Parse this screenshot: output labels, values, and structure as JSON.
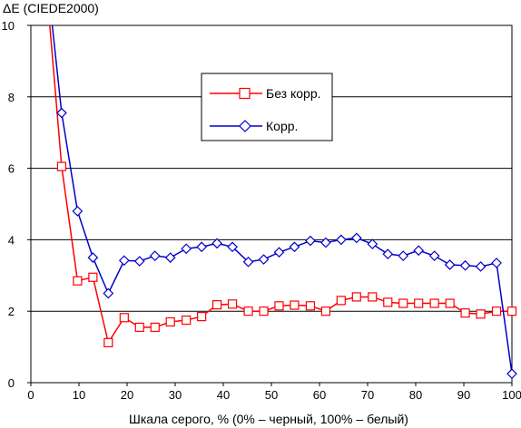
{
  "chart_data": {
    "type": "line",
    "ylabel": "ΔE (CIEDE2000)",
    "xlabel": "Шкала серого, % (0% – черный, 100% – белый)",
    "xlim": [
      0,
      100
    ],
    "ylim": [
      0,
      10
    ],
    "xticks": [
      0,
      10,
      20,
      30,
      40,
      50,
      60,
      70,
      80,
      90,
      100
    ],
    "yticks": [
      0,
      2,
      4,
      6,
      8,
      10
    ],
    "grid": "horizontal",
    "legend_position": "upper-center",
    "series": [
      {
        "name": "Без корр.",
        "color": "#ff0000",
        "marker": "square",
        "x": [
          6.4,
          9.7,
          12.9,
          16.1,
          19.4,
          22.6,
          25.8,
          29.0,
          32.3,
          35.5,
          38.7,
          41.9,
          45.2,
          48.4,
          51.6,
          54.8,
          58.1,
          61.3,
          64.5,
          67.7,
          71.0,
          74.2,
          77.4,
          80.6,
          83.9,
          87.1,
          90.3,
          93.5,
          96.8,
          100
        ],
        "y": [
          6.05,
          2.85,
          2.95,
          1.12,
          1.82,
          1.55,
          1.55,
          1.7,
          1.75,
          1.85,
          2.18,
          2.2,
          2.0,
          2.0,
          2.15,
          2.17,
          2.15,
          2.0,
          2.3,
          2.4,
          2.4,
          2.25,
          2.22,
          2.22,
          2.22,
          2.22,
          1.95,
          1.92,
          2.0,
          2.0
        ]
      },
      {
        "name": "Корр.",
        "color": "#0000cc",
        "marker": "diamond",
        "x": [
          6.4,
          9.7,
          12.9,
          16.1,
          19.4,
          22.6,
          25.8,
          29.0,
          32.3,
          35.5,
          38.7,
          41.9,
          45.2,
          48.4,
          51.6,
          54.8,
          58.1,
          61.3,
          64.5,
          67.7,
          71.0,
          74.2,
          77.4,
          80.6,
          83.9,
          87.1,
          90.3,
          93.5,
          96.8,
          100
        ],
        "y": [
          7.55,
          4.8,
          3.5,
          2.5,
          3.42,
          3.4,
          3.55,
          3.5,
          3.75,
          3.8,
          3.9,
          3.8,
          3.38,
          3.45,
          3.65,
          3.8,
          3.97,
          3.92,
          4.0,
          4.05,
          3.88,
          3.6,
          3.55,
          3.7,
          3.55,
          3.3,
          3.28,
          3.25,
          3.35,
          0.25
        ]
      }
    ]
  },
  "colors": {
    "background": "#ffffff",
    "grid": "#000000",
    "axis": "#000000"
  }
}
